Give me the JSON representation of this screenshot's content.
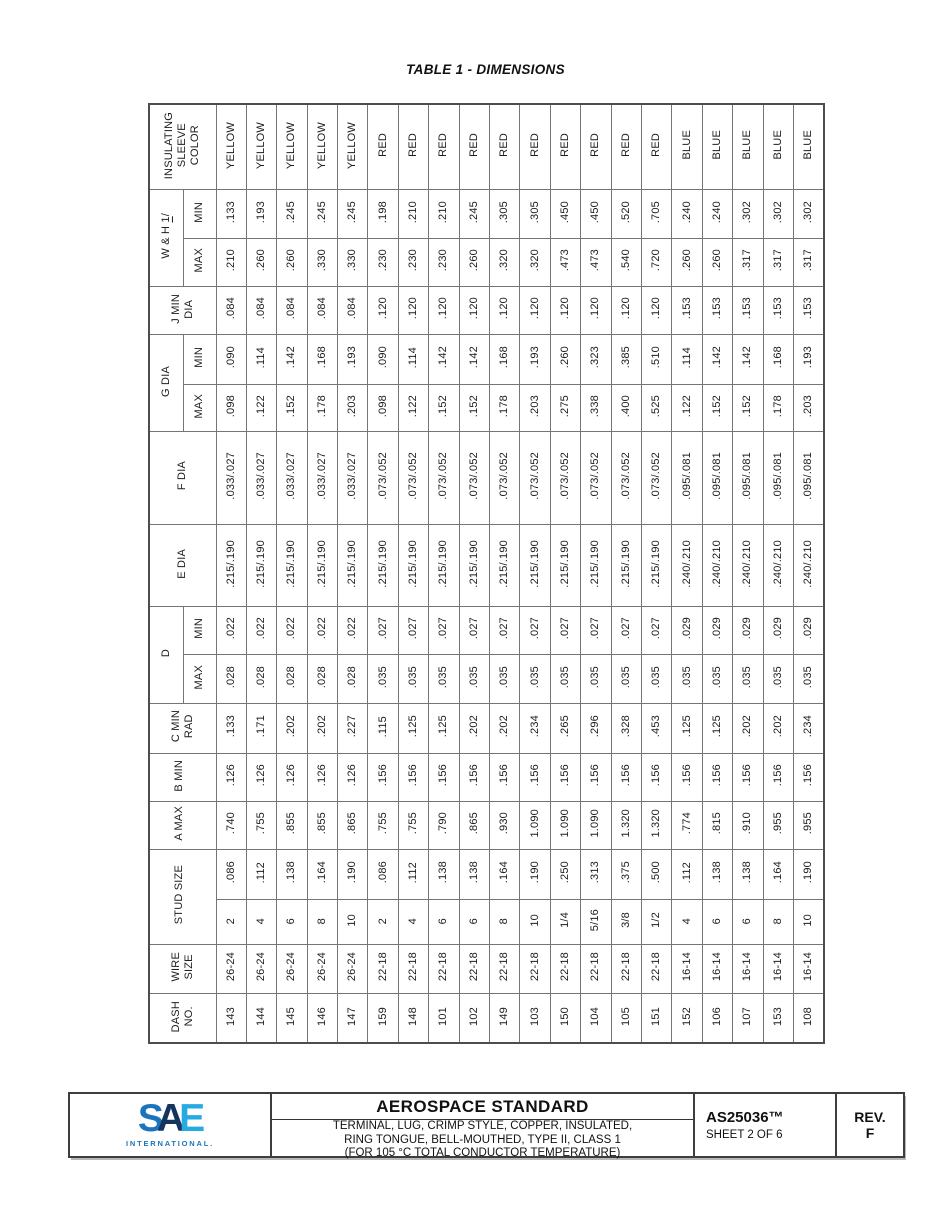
{
  "page": {
    "table_title": "TABLE 1 - DIMENSIONS"
  },
  "table": {
    "rows": {
      "sleeve_color": {
        "label": "INSULATING\nSLEEVE\nCOLOR",
        "values": [
          "YELLOW",
          "YELLOW",
          "YELLOW",
          "YELLOW",
          "YELLOW",
          "RED",
          "RED",
          "RED",
          "RED",
          "RED",
          "RED",
          "RED",
          "RED",
          "RED",
          "RED",
          "BLUE",
          "BLUE",
          "BLUE",
          "BLUE",
          "BLUE"
        ]
      },
      "wh_min": {
        "group_label": "W & H ",
        "footnote": "1",
        "footnote_suffix": "/",
        "sub_label": "MIN",
        "values": [
          ".133",
          ".193",
          ".245",
          ".245",
          ".245",
          ".198",
          ".210",
          ".210",
          ".245",
          ".305",
          ".305",
          ".450",
          ".450",
          ".520",
          ".705",
          ".240",
          ".240",
          ".302",
          ".302",
          ".302"
        ]
      },
      "wh_max": {
        "sub_label": "MAX",
        "values": [
          ".210",
          ".260",
          ".260",
          ".330",
          ".330",
          ".230",
          ".230",
          ".230",
          ".260",
          ".320",
          ".320",
          ".473",
          ".473",
          ".540",
          ".720",
          ".260",
          ".260",
          ".317",
          ".317",
          ".317"
        ]
      },
      "j_min_dia": {
        "label": "J MIN\nDIA",
        "values": [
          ".084",
          ".084",
          ".084",
          ".084",
          ".084",
          ".120",
          ".120",
          ".120",
          ".120",
          ".120",
          ".120",
          ".120",
          ".120",
          ".120",
          ".120",
          ".153",
          ".153",
          ".153",
          ".153",
          ".153"
        ]
      },
      "g_min": {
        "group_label": "G DIA",
        "sub_label": "MIN",
        "values": [
          ".090",
          ".114",
          ".142",
          ".168",
          ".193",
          ".090",
          ".114",
          ".142",
          ".142",
          ".168",
          ".193",
          ".260",
          ".323",
          ".385",
          ".510",
          ".114",
          ".142",
          ".142",
          ".168",
          ".193"
        ]
      },
      "g_max": {
        "sub_label": "MAX",
        "values": [
          ".098",
          ".122",
          ".152",
          ".178",
          ".203",
          ".098",
          ".122",
          ".152",
          ".152",
          ".178",
          ".203",
          ".275",
          ".338",
          ".400",
          ".525",
          ".122",
          ".152",
          ".152",
          ".178",
          ".203"
        ]
      },
      "f_dia": {
        "label": "F DIA",
        "values": [
          ".033/.027",
          ".033/.027",
          ".033/.027",
          ".033/.027",
          ".033/.027",
          ".073/.052",
          ".073/.052",
          ".073/.052",
          ".073/.052",
          ".073/.052",
          ".073/.052",
          ".073/.052",
          ".073/.052",
          ".073/.052",
          ".073/.052",
          ".095/.081",
          ".095/.081",
          ".095/.081",
          ".095/.081",
          ".095/.081"
        ]
      },
      "e_dia": {
        "label": "E DIA",
        "values": [
          ".215/.190",
          ".215/.190",
          ".215/.190",
          ".215/.190",
          ".215/.190",
          ".215/.190",
          ".215/.190",
          ".215/.190",
          ".215/.190",
          ".215/.190",
          ".215/.190",
          ".215/.190",
          ".215/.190",
          ".215/.190",
          ".215/.190",
          ".240/.210",
          ".240/.210",
          ".240/.210",
          ".240/.210",
          ".240/.210"
        ]
      },
      "d_min": {
        "group_label": "D",
        "sub_label": "MIN",
        "values": [
          ".022",
          ".022",
          ".022",
          ".022",
          ".022",
          ".027",
          ".027",
          ".027",
          ".027",
          ".027",
          ".027",
          ".027",
          ".027",
          ".027",
          ".027",
          ".029",
          ".029",
          ".029",
          ".029",
          ".029"
        ]
      },
      "d_max": {
        "sub_label": "MAX",
        "values": [
          ".028",
          ".028",
          ".028",
          ".028",
          ".028",
          ".035",
          ".035",
          ".035",
          ".035",
          ".035",
          ".035",
          ".035",
          ".035",
          ".035",
          ".035",
          ".035",
          ".035",
          ".035",
          ".035",
          ".035"
        ]
      },
      "c_min_rad": {
        "label": "C MIN\nRAD",
        "values": [
          ".133",
          ".171",
          ".202",
          ".202",
          ".227",
          ".115",
          ".125",
          ".125",
          ".202",
          ".202",
          ".234",
          ".265",
          ".296",
          ".328",
          ".453",
          ".125",
          ".125",
          ".202",
          ".202",
          ".234"
        ]
      },
      "b_min": {
        "label": "B MIN",
        "values": [
          ".126",
          ".126",
          ".126",
          ".126",
          ".126",
          ".156",
          ".156",
          ".156",
          ".156",
          ".156",
          ".156",
          ".156",
          ".156",
          ".156",
          ".156",
          ".156",
          ".156",
          ".156",
          ".156",
          ".156"
        ]
      },
      "a_max": {
        "label": "A MAX",
        "values": [
          ".740",
          ".755",
          ".855",
          ".855",
          ".865",
          ".755",
          ".755",
          ".790",
          ".865",
          ".930",
          "1.090",
          "1.090",
          "1.090",
          "1.320",
          "1.320",
          ".774",
          ".815",
          ".910",
          ".955",
          ".955"
        ]
      },
      "stud_size_dec": {
        "group_label": "STUD SIZE",
        "values": [
          ".086",
          ".112",
          ".138",
          ".164",
          ".190",
          ".086",
          ".112",
          ".138",
          ".138",
          ".164",
          ".190",
          ".250",
          ".313",
          ".375",
          ".500",
          ".112",
          ".138",
          ".138",
          ".164",
          ".190"
        ]
      },
      "stud_size_num": {
        "values": [
          "2",
          "4",
          "6",
          "8",
          "10",
          "2",
          "4",
          "6",
          "6",
          "8",
          "10",
          "1/4",
          "5/16",
          "3/8",
          "1/2",
          "4",
          "6",
          "6",
          "8",
          "10"
        ]
      },
      "wire_size": {
        "label": "WIRE\nSIZE",
        "values": [
          "26-24",
          "26-24",
          "26-24",
          "26-24",
          "26-24",
          "22-18",
          "22-18",
          "22-18",
          "22-18",
          "22-18",
          "22-18",
          "22-18",
          "22-18",
          "22-18",
          "22-18",
          "16-14",
          "16-14",
          "16-14",
          "16-14",
          "16-14"
        ]
      },
      "dash_no": {
        "label": "DASH\nNO.",
        "values": [
          "143",
          "144",
          "145",
          "146",
          "147",
          "159",
          "148",
          "101",
          "102",
          "149",
          "103",
          "150",
          "104",
          "105",
          "151",
          "152",
          "106",
          "107",
          "153",
          "108"
        ]
      }
    }
  },
  "footer": {
    "logo": {
      "letter_s": "S",
      "letter_a": "A",
      "letter_e": "E",
      "subtext": "INTERNATIONAL.",
      "color_s": "#1c75bb",
      "color_a": "#16355e",
      "color_e": "#27aae1"
    },
    "standard_title": "AEROSPACE STANDARD",
    "subtitle_line1": "TERMINAL, LUG, CRIMP STYLE, COPPER, INSULATED,",
    "subtitle_line2": "RING TONGUE, BELL-MOUTHED, TYPE II, CLASS 1",
    "subtitle_line3": "(FOR 105 °C TOTAL CONDUCTOR TEMPERATURE)",
    "document_number": "AS25036™",
    "sheet_info": "SHEET 2 OF 6",
    "rev_label": "REV.",
    "rev_letter": "F"
  }
}
